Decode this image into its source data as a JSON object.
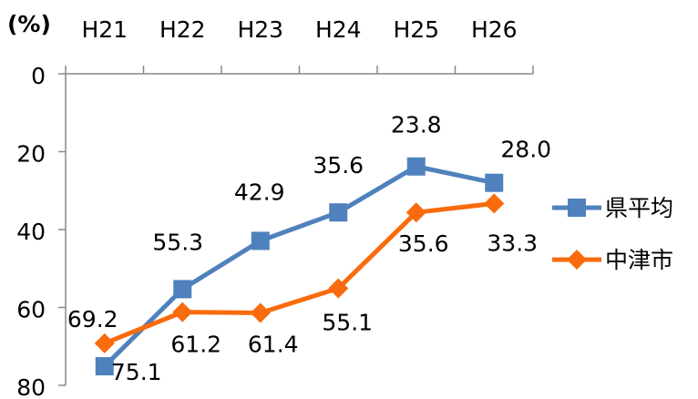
{
  "chart_data": {
    "type": "line",
    "y_label": "(%)",
    "categories": [
      "H21",
      "H22",
      "H23",
      "H24",
      "H25",
      "H26"
    ],
    "ylim": [
      0,
      80
    ],
    "yticks": [
      0,
      20,
      40,
      60,
      80
    ],
    "y_reversed": true,
    "legend": "right",
    "series": [
      {
        "name": "県平均",
        "color": "#4f81bd",
        "marker": "square",
        "values": [
          75.1,
          55.3,
          42.9,
          35.6,
          23.8,
          28.0
        ],
        "value_labels": [
          "75.1",
          "55.3",
          "42.9",
          "35.6",
          "23.8",
          "28.0"
        ]
      },
      {
        "name": "中津市",
        "color": "#f96b0c",
        "marker": "diamond",
        "values": [
          69.2,
          61.2,
          61.4,
          55.1,
          35.6,
          33.3
        ]
      }
    ]
  }
}
